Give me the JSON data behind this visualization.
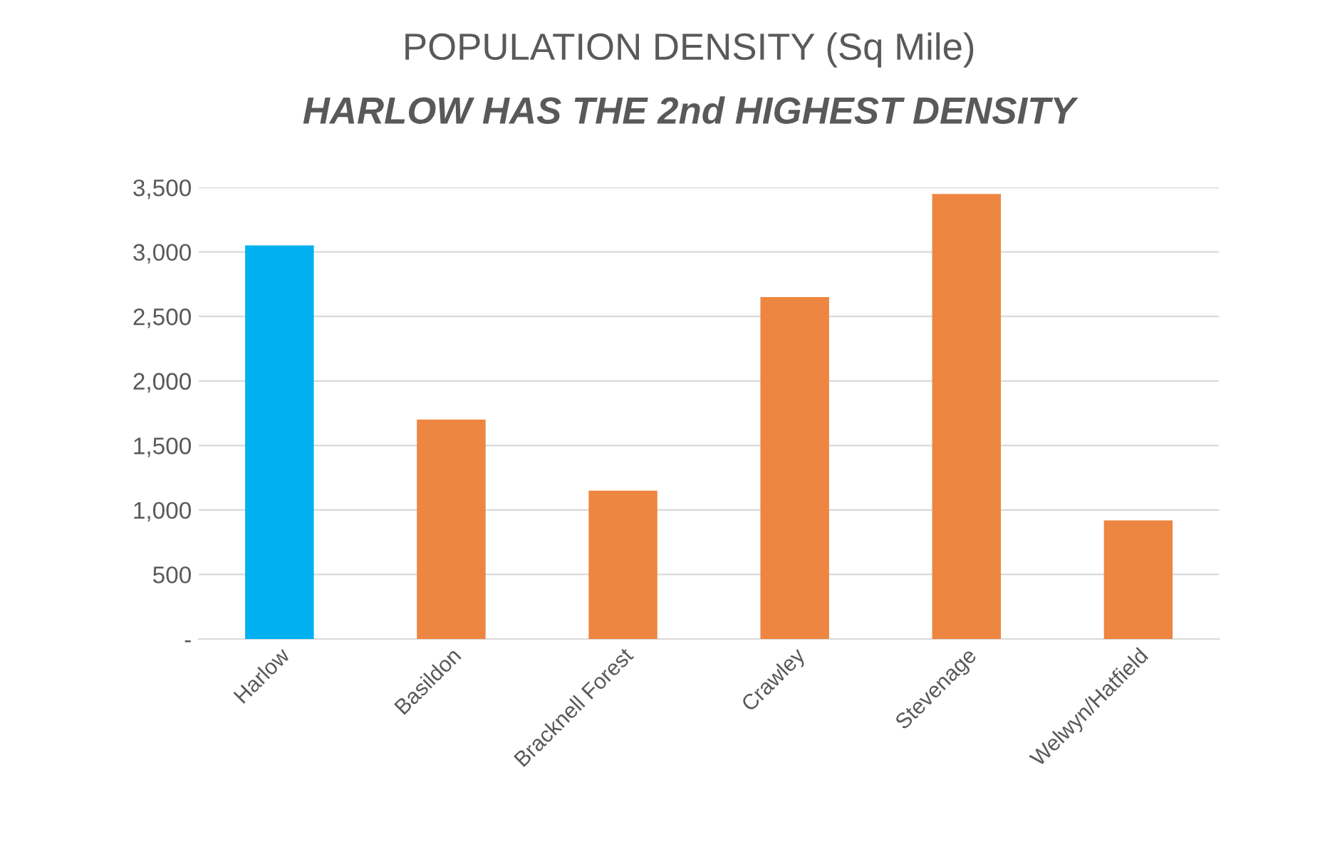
{
  "chart_data": {
    "type": "bar",
    "title": "POPULATION DENSITY (Sq Mile)",
    "subtitle": "HARLOW HAS THE 2nd HIGHEST DENSITY",
    "categories": [
      "Harlow",
      "Basildon",
      "Bracknell Forest",
      "Crawley",
      "Stevenage",
      "Welwyn/Hatfield"
    ],
    "values": [
      3050,
      1700,
      1150,
      2650,
      3450,
      920
    ],
    "colors": [
      "#00b0f0",
      "#ed8641",
      "#ed8641",
      "#ed8641",
      "#ed8641",
      "#ed8641"
    ],
    "ylim": [
      0,
      3500
    ],
    "yticks": [
      {
        "value": 0,
        "label": "-"
      },
      {
        "value": 500,
        "label": "500"
      },
      {
        "value": 1000,
        "label": "1,000"
      },
      {
        "value": 1500,
        "label": "1,500"
      },
      {
        "value": 2000,
        "label": "2,000"
      },
      {
        "value": 2500,
        "label": "2,500"
      },
      {
        "value": 3000,
        "label": "3,000"
      },
      {
        "value": 3500,
        "label": "3,500"
      }
    ],
    "grid": "y",
    "legend": false
  }
}
